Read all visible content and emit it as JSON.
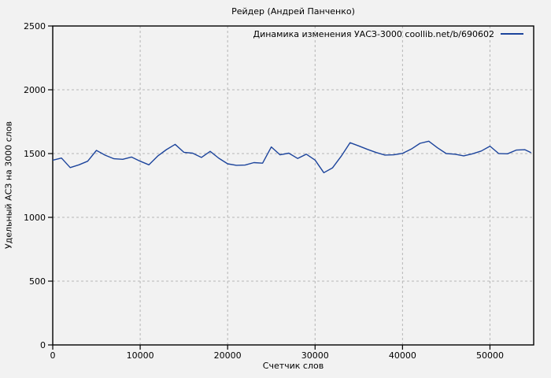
{
  "chart_data": {
    "type": "line",
    "title": "Рейдер (Андрей Панченко)",
    "xlabel": "Счетчик слов",
    "ylabel": "Удельный АСЗ на 3000 слов",
    "xlim": [
      0,
      55000
    ],
    "ylim": [
      0,
      2500
    ],
    "xticks": [
      0,
      10000,
      20000,
      30000,
      40000,
      50000
    ],
    "yticks": [
      0,
      500,
      1000,
      1500,
      2000,
      2500
    ],
    "grid": "dashed",
    "legend_position": "top-right-inside",
    "colors": {
      "background": "#f2f2f2",
      "border": "#000000",
      "grid": "#b5b5b5",
      "text": "#000000",
      "series_line": "#1c449c"
    },
    "series": [
      {
        "name": "Динамика изменения УАСЗ-3000 coollib.net/b/690602",
        "color": "#1c449c",
        "points": [
          [
            0,
            1448
          ],
          [
            1000,
            1465
          ],
          [
            2000,
            1390
          ],
          [
            3000,
            1412
          ],
          [
            4000,
            1440
          ],
          [
            5000,
            1525
          ],
          [
            6000,
            1487
          ],
          [
            7000,
            1459
          ],
          [
            8000,
            1455
          ],
          [
            9000,
            1473
          ],
          [
            10000,
            1440
          ],
          [
            11000,
            1412
          ],
          [
            12000,
            1480
          ],
          [
            13000,
            1531
          ],
          [
            14000,
            1572
          ],
          [
            15000,
            1510
          ],
          [
            16000,
            1503
          ],
          [
            17000,
            1470
          ],
          [
            18000,
            1517
          ],
          [
            19000,
            1463
          ],
          [
            20000,
            1420
          ],
          [
            21000,
            1408
          ],
          [
            22000,
            1410
          ],
          [
            23000,
            1429
          ],
          [
            24000,
            1425
          ],
          [
            25000,
            1552
          ],
          [
            26000,
            1490
          ],
          [
            27000,
            1503
          ],
          [
            28000,
            1462
          ],
          [
            29000,
            1495
          ],
          [
            30000,
            1449
          ],
          [
            31000,
            1350
          ],
          [
            32000,
            1388
          ],
          [
            33000,
            1480
          ],
          [
            34000,
            1585
          ],
          [
            35000,
            1560
          ],
          [
            36000,
            1533
          ],
          [
            37000,
            1508
          ],
          [
            38000,
            1488
          ],
          [
            39000,
            1490
          ],
          [
            40000,
            1502
          ],
          [
            41000,
            1535
          ],
          [
            42000,
            1580
          ],
          [
            43000,
            1597
          ],
          [
            44000,
            1545
          ],
          [
            45000,
            1500
          ],
          [
            46000,
            1495
          ],
          [
            47000,
            1482
          ],
          [
            48000,
            1498
          ],
          [
            49000,
            1520
          ],
          [
            50000,
            1558
          ],
          [
            51000,
            1500
          ],
          [
            52000,
            1498
          ],
          [
            53000,
            1527
          ],
          [
            54000,
            1530
          ],
          [
            54700,
            1507
          ]
        ]
      }
    ]
  }
}
